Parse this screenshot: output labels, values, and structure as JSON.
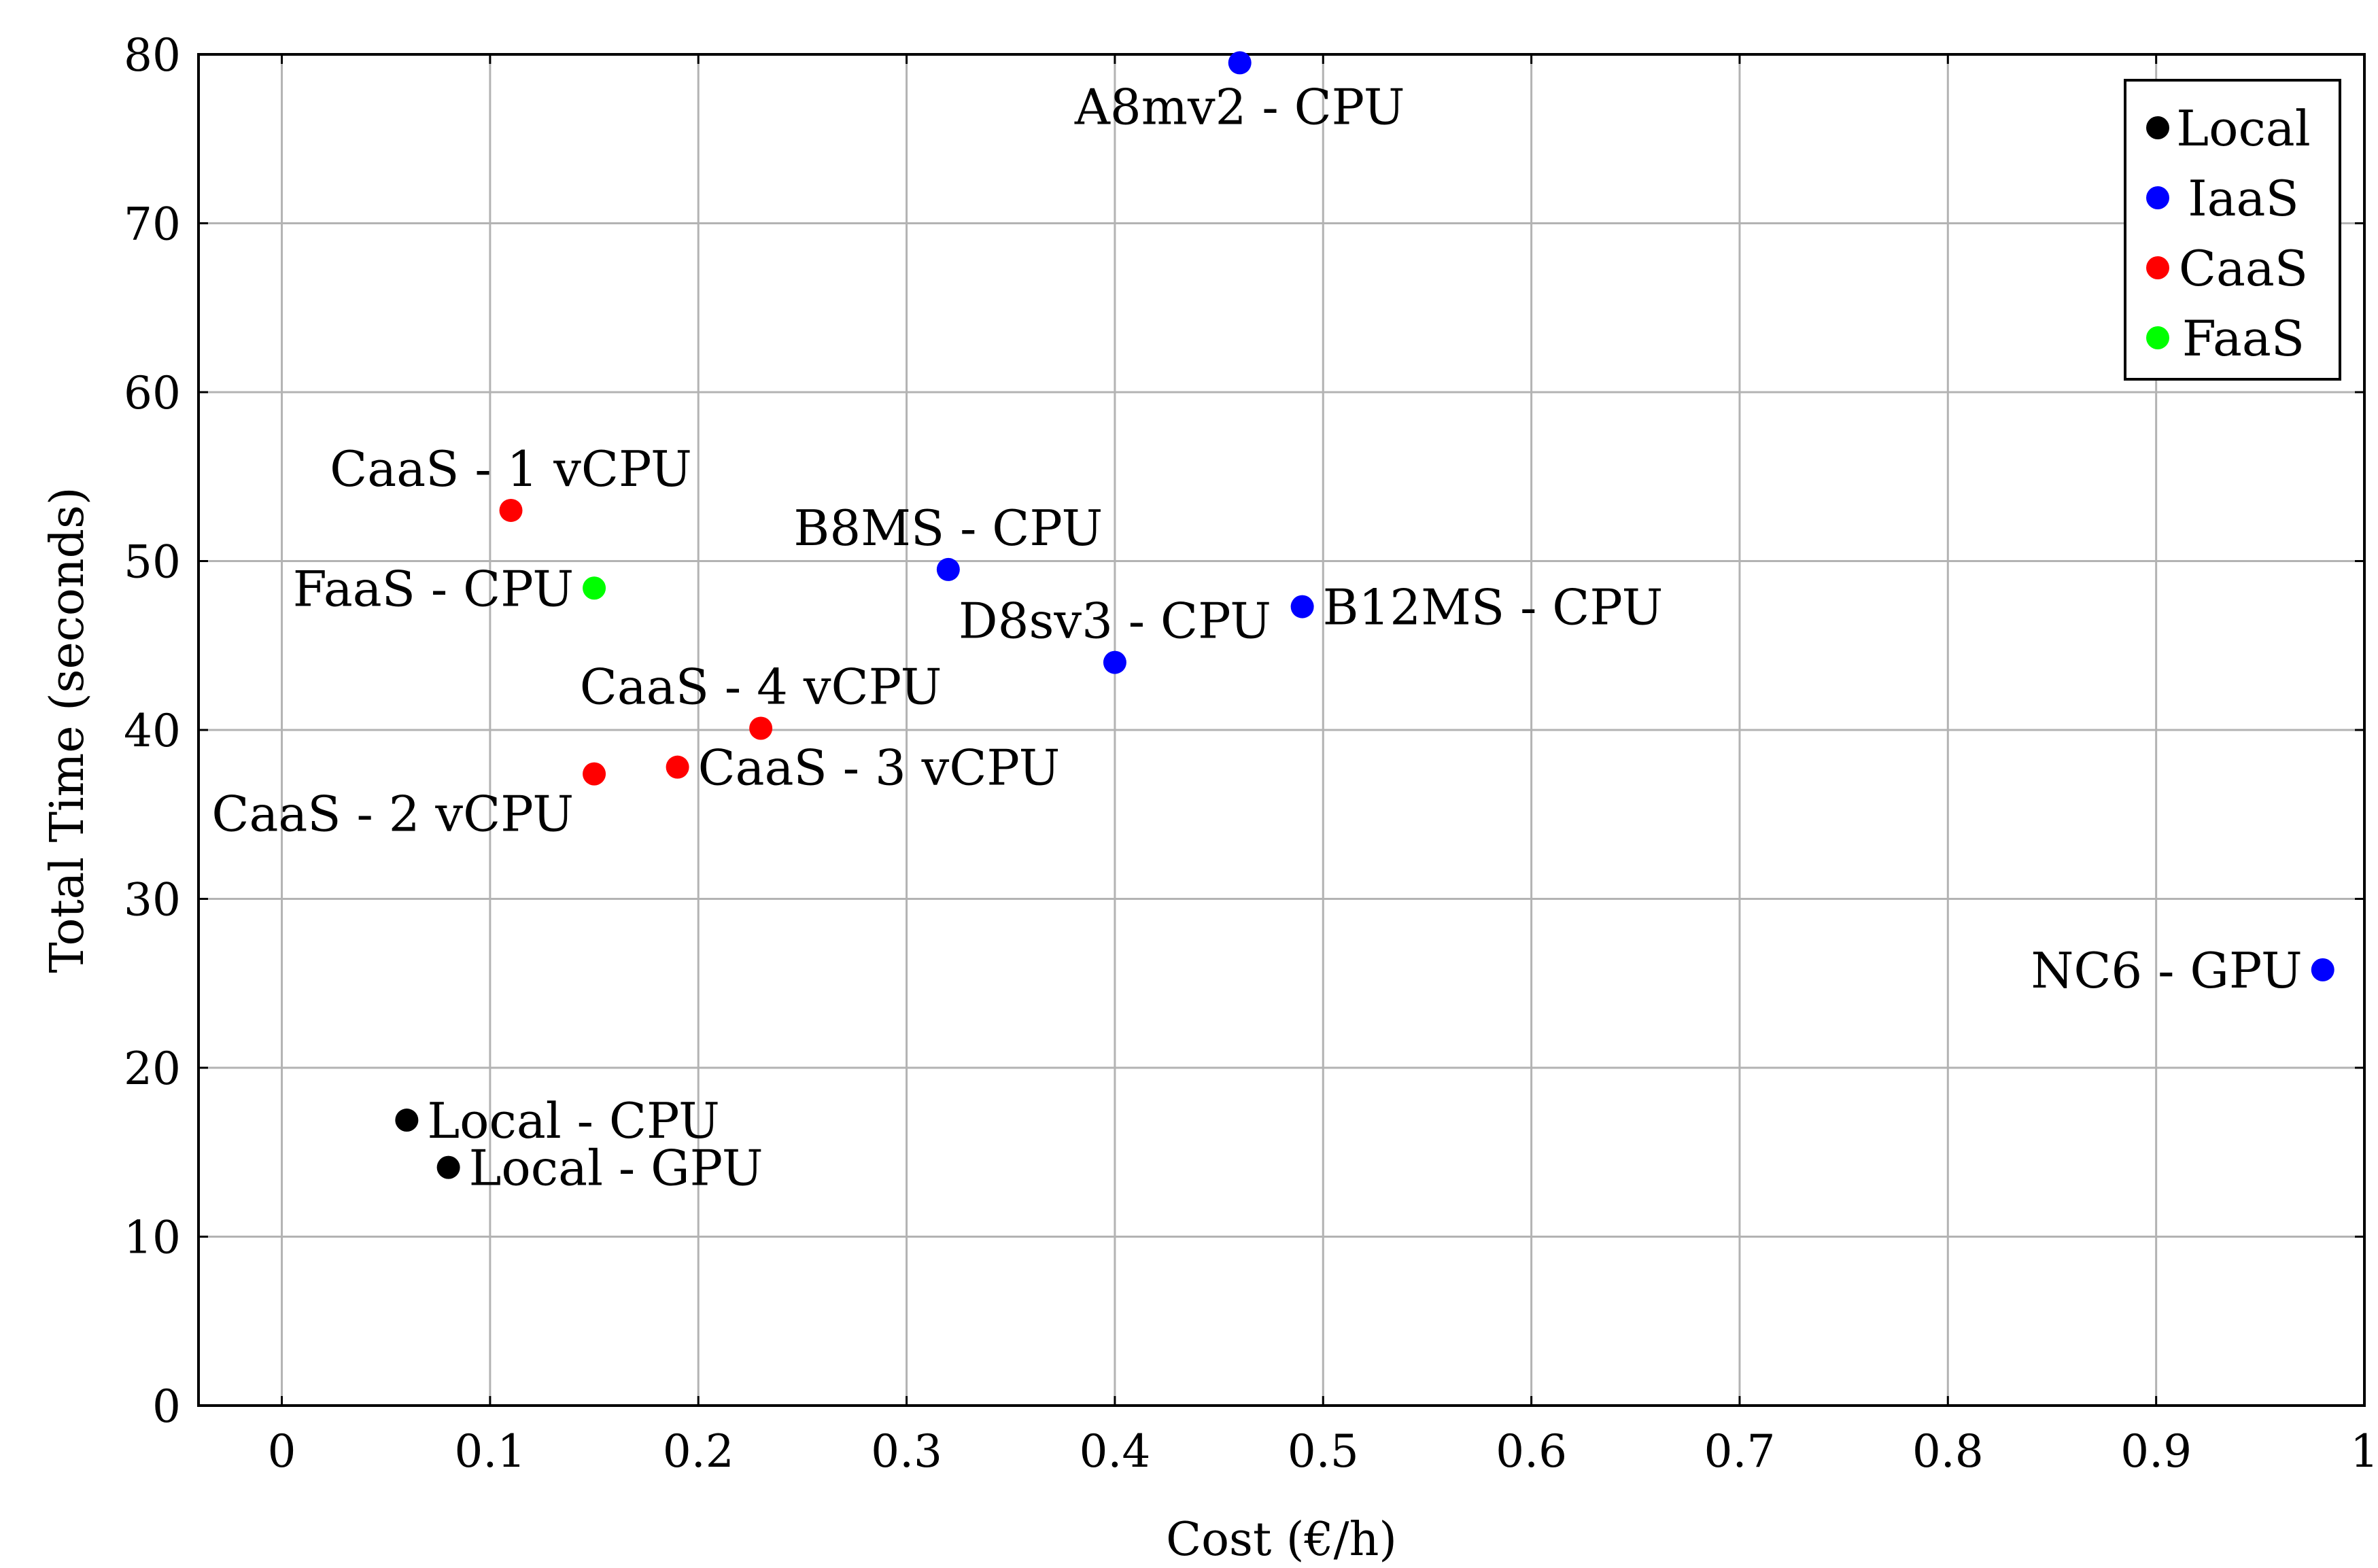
{
  "chart_data": {
    "type": "scatter",
    "title": "",
    "xlabel": "Cost (€/h)",
    "ylabel": "Total Time (seconds)",
    "xlim": [
      -0.04,
      1.0
    ],
    "ylim": [
      0,
      80
    ],
    "xticks": [
      0,
      0.1,
      0.2,
      0.3,
      0.4,
      0.5,
      0.6,
      0.7,
      0.8,
      0.9,
      1
    ],
    "xtick_labels": [
      "0",
      "0.1",
      "0.2",
      "0.3",
      "0.4",
      "0.5",
      "0.6",
      "0.7",
      "0.8",
      "0.9",
      "1"
    ],
    "yticks": [
      0,
      10,
      20,
      30,
      40,
      50,
      60,
      70,
      80
    ],
    "ytick_labels": [
      "0",
      "10",
      "20",
      "30",
      "40",
      "50",
      "60",
      "70",
      "80"
    ],
    "grid": true,
    "legend_position": "top-right",
    "series": [
      {
        "name": "Local",
        "color": "#000000",
        "points": [
          {
            "x": 0.06,
            "y": 16.9,
            "label": "Local - CPU",
            "anchor": "right"
          },
          {
            "x": 0.08,
            "y": 14.1,
            "label": "Local - GPU",
            "anchor": "right"
          }
        ]
      },
      {
        "name": "IaaS",
        "color": "#0000ff",
        "points": [
          {
            "x": 0.46,
            "y": 79.5,
            "label": "A8mv2 - CPU",
            "anchor": "below"
          },
          {
            "x": 0.32,
            "y": 49.5,
            "label": "B8MS - CPU",
            "anchor": "above"
          },
          {
            "x": 0.4,
            "y": 44.0,
            "label": "D8sv3 - CPU",
            "anchor": "above"
          },
          {
            "x": 0.49,
            "y": 47.3,
            "label": "B12MS - CPU",
            "anchor": "right"
          },
          {
            "x": 0.98,
            "y": 25.8,
            "label": "NC6 - GPU",
            "anchor": "left"
          }
        ]
      },
      {
        "name": "CaaS",
        "color": "#ff0000",
        "points": [
          {
            "x": 0.11,
            "y": 53.0,
            "label": "CaaS - 1 vCPU",
            "anchor": "above"
          },
          {
            "x": 0.15,
            "y": 37.4,
            "label": "CaaS - 2 vCPU",
            "anchor": "below-left"
          },
          {
            "x": 0.19,
            "y": 37.8,
            "label": "CaaS - 3 vCPU",
            "anchor": "right"
          },
          {
            "x": 0.23,
            "y": 40.1,
            "label": "CaaS - 4 vCPU",
            "anchor": "above"
          }
        ]
      },
      {
        "name": "FaaS",
        "color": "#00ff00",
        "points": [
          {
            "x": 0.15,
            "y": 48.4,
            "label": "FaaS - CPU",
            "anchor": "left"
          }
        ]
      }
    ]
  }
}
